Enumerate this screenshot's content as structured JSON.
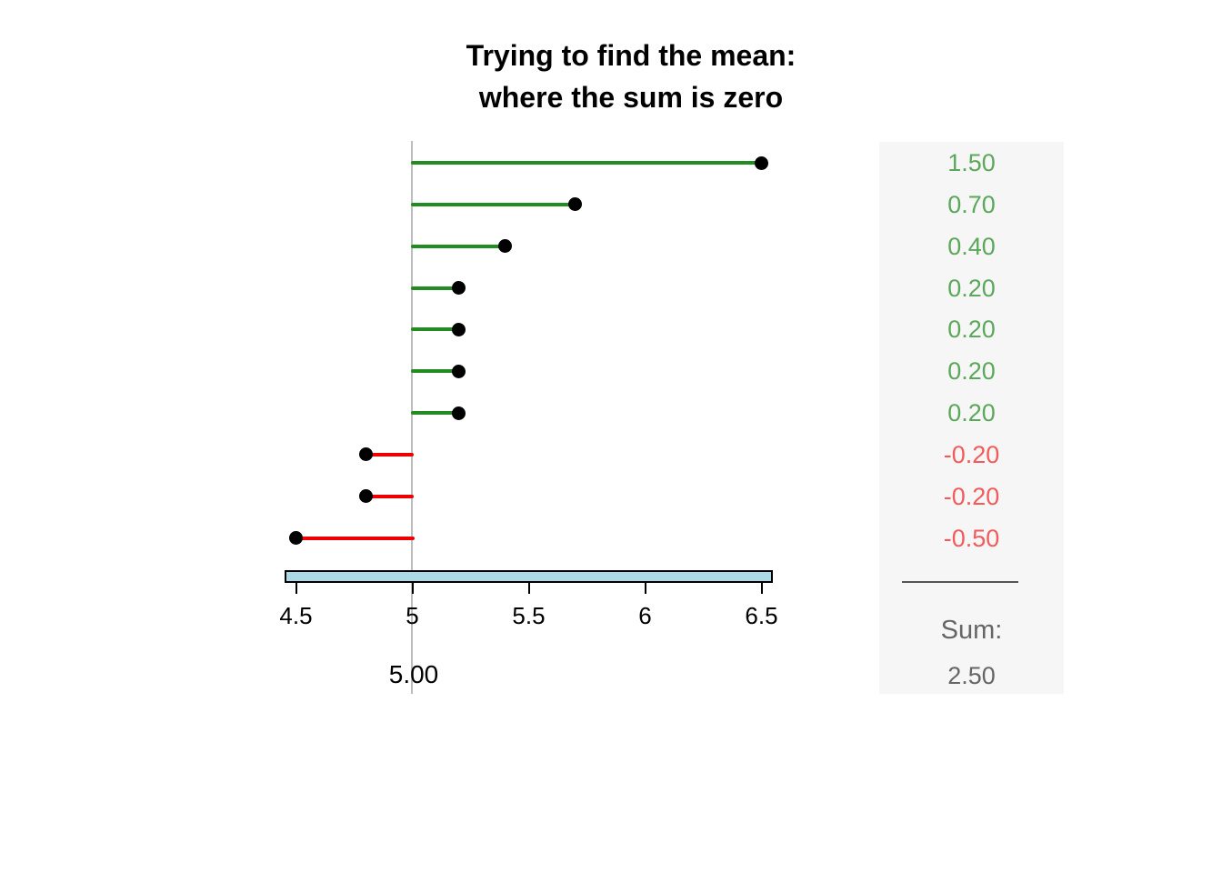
{
  "title": {
    "line1": "Trying to find the mean:",
    "line2": "where the sum is zero"
  },
  "chart_data": {
    "type": "lollipop",
    "orientation": "horizontal",
    "title": "Trying to find the mean: where the sum is zero",
    "baseline": 5.0,
    "baseline_label": "5.00",
    "xlim": [
      4.35,
      6.65
    ],
    "x_ticks": [
      {
        "value": 4.5,
        "label": "4.5"
      },
      {
        "value": 5.0,
        "label": "5"
      },
      {
        "value": 5.5,
        "label": "5.5"
      },
      {
        "value": 6.0,
        "label": "6"
      },
      {
        "value": 6.5,
        "label": "6.5"
      }
    ],
    "range_bar": {
      "from": 4.45,
      "to": 6.55
    },
    "points": [
      {
        "value": 6.5,
        "deviation": 1.5,
        "label": "1.50"
      },
      {
        "value": 5.7,
        "deviation": 0.7,
        "label": "0.70"
      },
      {
        "value": 5.4,
        "deviation": 0.4,
        "label": "0.40"
      },
      {
        "value": 5.2,
        "deviation": 0.2,
        "label": "0.20"
      },
      {
        "value": 5.2,
        "deviation": 0.2,
        "label": "0.20"
      },
      {
        "value": 5.2,
        "deviation": 0.2,
        "label": "0.20"
      },
      {
        "value": 5.2,
        "deviation": 0.2,
        "label": "0.20"
      },
      {
        "value": 4.8,
        "deviation": -0.2,
        "label": "-0.20"
      },
      {
        "value": 4.8,
        "deviation": -0.2,
        "label": "-0.20"
      },
      {
        "value": 4.5,
        "deviation": -0.5,
        "label": "-0.50"
      }
    ],
    "sum_label": "Sum:",
    "sum_value": "2.50",
    "legend": "none",
    "grid": false
  },
  "colors": {
    "positive_line": "#228B22",
    "negative_line": "#EE0000",
    "positive_text": "#5BA85B",
    "negative_text": "#F25B5B",
    "dot": "#000000",
    "baseline_line": "#BDBDBD",
    "range_bar_fill": "#ADD8E6",
    "panel_background": "#F6F6F6",
    "sum_text": "#666666",
    "title_text": "#000000"
  }
}
